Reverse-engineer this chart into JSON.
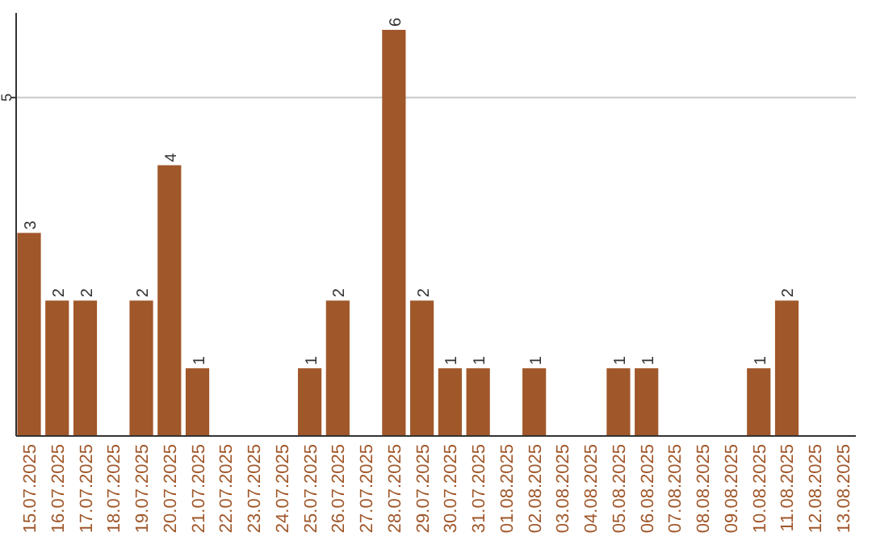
{
  "chart_data": {
    "type": "bar",
    "categories": [
      "15.07.2025",
      "16.07.2025",
      "17.07.2025",
      "18.07.2025",
      "19.07.2025",
      "20.07.2025",
      "21.07.2025",
      "22.07.2025",
      "23.07.2025",
      "24.07.2025",
      "25.07.2025",
      "26.07.2025",
      "27.07.2025",
      "28.07.2025",
      "29.07.2025",
      "30.07.2025",
      "31.07.2025",
      "01.08.2025",
      "02.08.2025",
      "03.08.2025",
      "04.08.2025",
      "05.08.2025",
      "06.08.2025",
      "07.08.2025",
      "08.08.2025",
      "09.08.2025",
      "10.08.2025",
      "11.08.2025",
      "12.08.2025",
      "13.08.2025"
    ],
    "values": [
      3,
      2,
      2,
      0,
      2,
      4,
      1,
      0,
      0,
      0,
      1,
      2,
      0,
      6,
      2,
      1,
      1,
      0,
      1,
      0,
      0,
      1,
      1,
      0,
      0,
      0,
      1,
      2,
      0,
      0
    ],
    "value_labels": [
      "3",
      "2",
      "2",
      null,
      "2",
      "4",
      "1",
      null,
      null,
      null,
      "1",
      "2",
      null,
      "6",
      "2",
      "1",
      "1",
      null,
      "1",
      null,
      null,
      "1",
      "1",
      null,
      null,
      null,
      "1",
      "2",
      null,
      null
    ],
    "color": "#a0572a",
    "ylim": [
      0,
      6.25
    ],
    "yticks": [
      5
    ],
    "grid": "y"
  }
}
